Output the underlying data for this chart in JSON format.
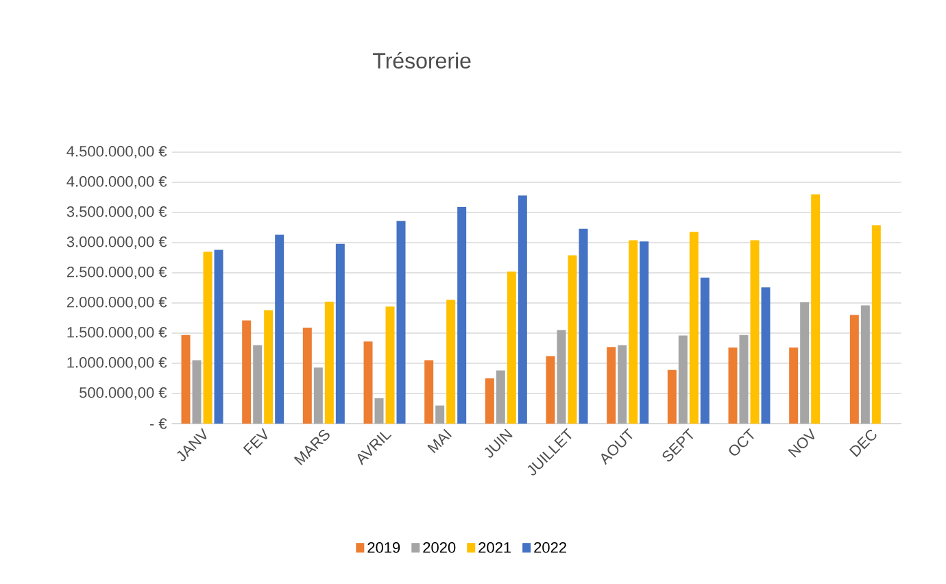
{
  "chart_data": {
    "type": "bar",
    "title": "Trésorerie",
    "categories": [
      "JANV",
      "FEV",
      "MARS",
      "AVRIL",
      "MAI",
      "JUIN",
      "JUILLET",
      "AOUT",
      "SEPT",
      "OCT",
      "NOV",
      "DEC"
    ],
    "series": [
      {
        "name": "2019",
        "color": "#ed7d31",
        "values": [
          1470000,
          1710000,
          1590000,
          1360000,
          1050000,
          750000,
          1120000,
          1270000,
          890000,
          1260000,
          1260000,
          1800000
        ]
      },
      {
        "name": "2020",
        "color": "#a5a5a5",
        "values": [
          1050000,
          1300000,
          930000,
          420000,
          300000,
          880000,
          1550000,
          1300000,
          1460000,
          1470000,
          2010000,
          1960000
        ]
      },
      {
        "name": "2021",
        "color": "#ffc000",
        "values": [
          2850000,
          1880000,
          2020000,
          1940000,
          2050000,
          2520000,
          2790000,
          3040000,
          3180000,
          3040000,
          3800000,
          3290000
        ]
      },
      {
        "name": "2022",
        "color": "#4472c4",
        "values": [
          2880000,
          3130000,
          2980000,
          3360000,
          3590000,
          3780000,
          3230000,
          3020000,
          2420000,
          2260000,
          null,
          null
        ]
      }
    ],
    "ylim": [
      0,
      4500000
    ],
    "yticks": [
      {
        "value": 0,
        "label": "-   €"
      },
      {
        "value": 500000,
        "label": "500.000,00 €"
      },
      {
        "value": 1000000,
        "label": "1.000.000,00 €"
      },
      {
        "value": 1500000,
        "label": "1.500.000,00 €"
      },
      {
        "value": 2000000,
        "label": "2.000.000,00 €"
      },
      {
        "value": 2500000,
        "label": "2.500.000,00 €"
      },
      {
        "value": 3000000,
        "label": "3.000.000,00 €"
      },
      {
        "value": 3500000,
        "label": "3.500.000,00 €"
      },
      {
        "value": 4000000,
        "label": "4.000.000,00 €"
      },
      {
        "value": 4500000,
        "label": "4.500.000,00 €"
      }
    ],
    "grid": "y",
    "legend": "bottom"
  }
}
